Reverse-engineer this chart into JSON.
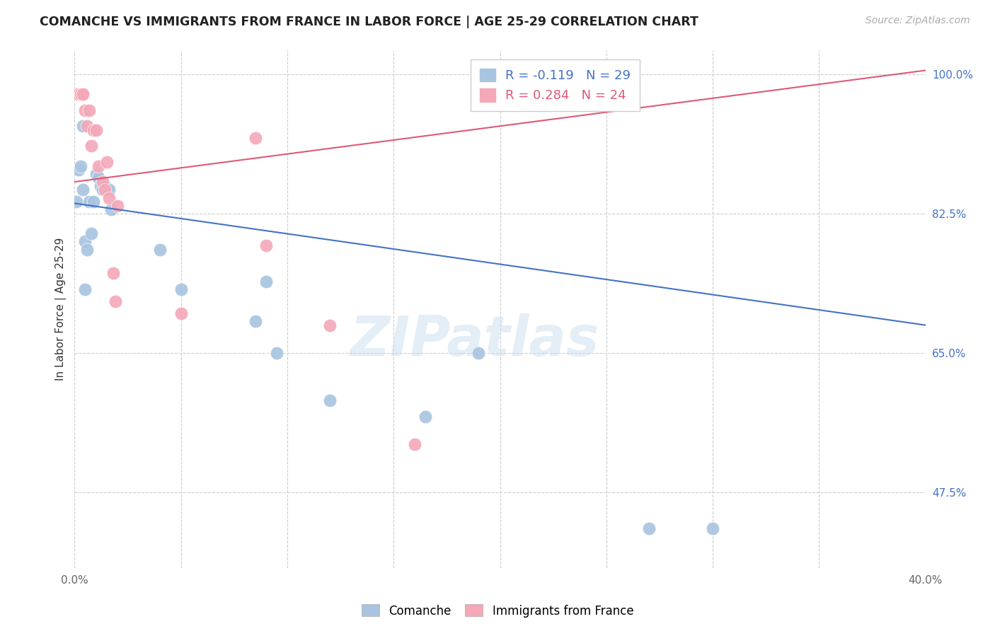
{
  "title": "COMANCHE VS IMMIGRANTS FROM FRANCE IN LABOR FORCE | AGE 25-29 CORRELATION CHART",
  "source": "Source: ZipAtlas.com",
  "ylabel": "In Labor Force | Age 25-29",
  "xlim": [
    0.0,
    0.4
  ],
  "ylim": [
    0.38,
    1.03
  ],
  "background_color": "#ffffff",
  "grid_color": "#cccccc",
  "watermark_text": "ZIPatlas",
  "comanche_color": "#a8c4e0",
  "france_color": "#f4a8b8",
  "comanche_line_color": "#4472c4",
  "france_line_color": "#e05878",
  "legend_R_comanche": "R = -0.119",
  "legend_N_comanche": "N = 29",
  "legend_R_france": "R = 0.284",
  "legend_N_france": "N = 24",
  "comanche_line_x0": 0.0,
  "comanche_line_y0": 0.838,
  "comanche_line_x1": 0.4,
  "comanche_line_y1": 0.685,
  "france_line_x0": 0.0,
  "france_line_y0": 0.865,
  "france_line_x1": 0.4,
  "france_line_y1": 1.005,
  "comanche_x": [
    0.001,
    0.002,
    0.003,
    0.004,
    0.004,
    0.005,
    0.005,
    0.006,
    0.007,
    0.008,
    0.009,
    0.01,
    0.011,
    0.012,
    0.013,
    0.014,
    0.015,
    0.016,
    0.017,
    0.04,
    0.05,
    0.085,
    0.09,
    0.095,
    0.12,
    0.165,
    0.19,
    0.27,
    0.3
  ],
  "comanche_y": [
    0.84,
    0.88,
    0.885,
    0.855,
    0.935,
    0.79,
    0.73,
    0.78,
    0.84,
    0.8,
    0.84,
    0.875,
    0.87,
    0.86,
    0.855,
    0.86,
    0.855,
    0.855,
    0.83,
    0.78,
    0.73,
    0.69,
    0.74,
    0.65,
    0.59,
    0.57,
    0.65,
    0.43,
    0.43
  ],
  "france_x": [
    0.001,
    0.002,
    0.003,
    0.004,
    0.004,
    0.005,
    0.006,
    0.007,
    0.008,
    0.009,
    0.01,
    0.011,
    0.013,
    0.014,
    0.015,
    0.016,
    0.018,
    0.019,
    0.02,
    0.05,
    0.085,
    0.09,
    0.12,
    0.16
  ],
  "france_y": [
    0.975,
    0.975,
    0.975,
    0.975,
    0.975,
    0.955,
    0.935,
    0.955,
    0.91,
    0.93,
    0.93,
    0.885,
    0.865,
    0.855,
    0.89,
    0.845,
    0.75,
    0.715,
    0.835,
    0.7,
    0.92,
    0.785,
    0.685,
    0.535
  ]
}
